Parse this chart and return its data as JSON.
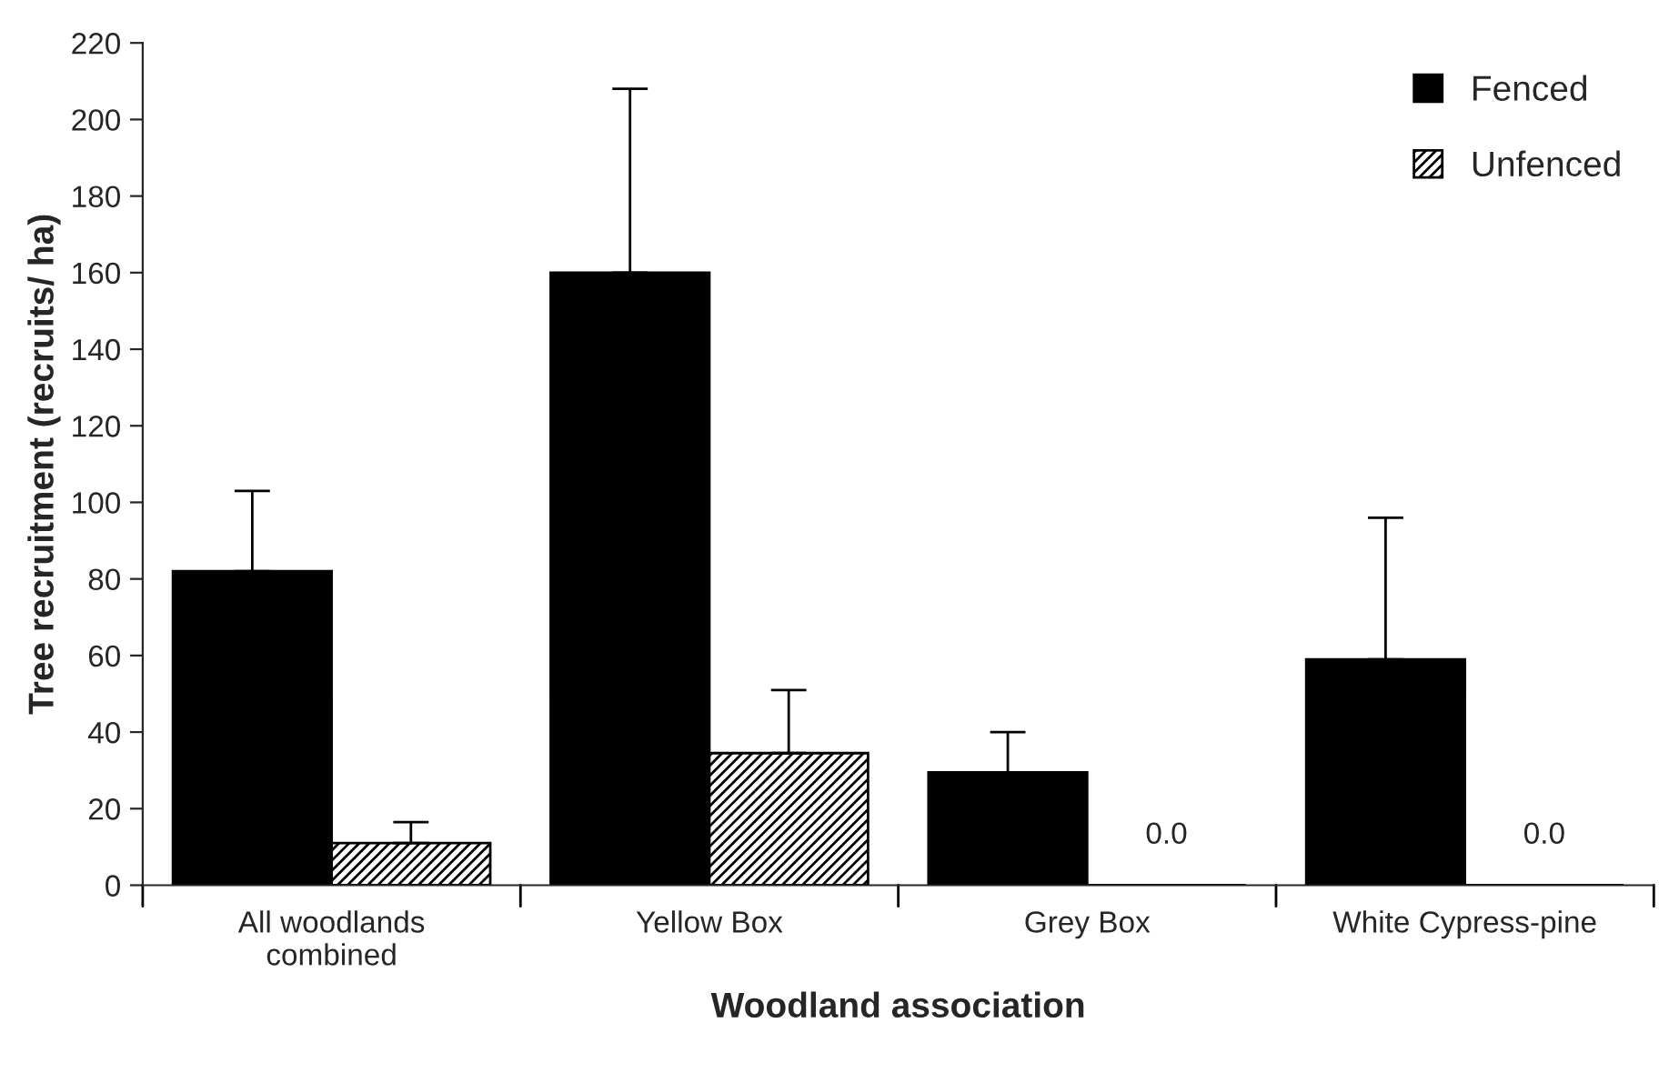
{
  "chart_data": {
    "type": "bar",
    "xlabel": "Woodland association",
    "ylabel": "Tree recruitment (recruits/ ha)",
    "categories": [
      "All woodlands\ncombined",
      "Yellow Box",
      "Grey Box",
      "White Cypress-pine"
    ],
    "series": [
      {
        "name": "Fenced",
        "color": "#000000",
        "values": [
          82,
          160,
          29.5,
          59
        ],
        "errors": [
          [
            82,
            103
          ],
          [
            160,
            208
          ],
          [
            29.5,
            40
          ],
          [
            59,
            96
          ]
        ]
      },
      {
        "name": "Unfenced",
        "color": "#000000",
        "values": [
          11,
          34.5,
          0,
          0
        ],
        "errors": [
          [
            11,
            16.5
          ],
          [
            34.5,
            51
          ],
          null,
          null
        ],
        "value_labels": [
          null,
          null,
          "0.0",
          "0.0"
        ]
      }
    ],
    "ylim": [
      0,
      220
    ],
    "yticks": [
      0,
      20,
      40,
      60,
      80,
      100,
      120,
      140,
      160,
      180,
      200,
      220
    ],
    "grid": false,
    "legend": "top right"
  }
}
